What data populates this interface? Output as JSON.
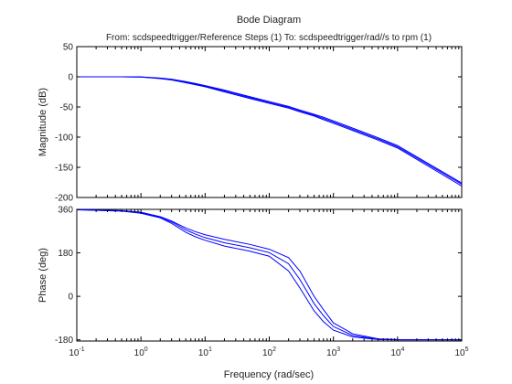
{
  "chart_data": {
    "type": "line",
    "title": "Bode Diagram",
    "subtitle": "From: scdspeedtrigger/Reference Steps (1)  To: scdspeedtrigger/rad//s to rpm (1)",
    "xlabel": "Frequency  (rad/sec)",
    "xscale": "log",
    "xlim": [
      0.1,
      100000
    ],
    "x_tick_labels": [
      "10",
      "10",
      "10",
      "10",
      "10",
      "10",
      "10"
    ],
    "x_tick_exponents": [
      "-1",
      "0",
      "1",
      "2",
      "3",
      "4",
      "5"
    ],
    "grid": false,
    "colors": {
      "line": "#0000ff",
      "axes": "#000000",
      "background": "#ffffff"
    },
    "x": [
      0.1,
      0.5,
      1,
      2,
      3,
      5,
      7,
      10,
      20,
      50,
      100,
      200,
      300,
      500,
      700,
      1000,
      2000,
      5000,
      10000,
      100000
    ],
    "panels": [
      {
        "ylabel": "Magnitude (dB)",
        "ylim": [
          -200,
          50
        ],
        "yticks": [
          -200,
          -150,
          -100,
          -50,
          0,
          50
        ],
        "y_tick_labels": [
          "-200",
          "-150",
          "-100",
          "-50",
          "0",
          "50"
        ],
        "series": [
          {
            "values": [
              0,
              0,
              -0.2,
              -2,
              -4,
              -8,
              -11,
              -14.5,
              -22,
              -33,
              -41,
              -49,
              -55,
              -62,
              -67,
              -73,
              -85,
              -101,
              -114,
              -176
            ]
          },
          {
            "values": [
              0,
              0,
              -0.3,
              -2.5,
              -4.6,
              -8.8,
              -12,
              -15.5,
              -23.5,
              -34.5,
              -42.5,
              -50.5,
              -56.5,
              -63.5,
              -69,
              -75,
              -87,
              -103,
              -116,
              -178
            ]
          },
          {
            "values": [
              0,
              0,
              -0.4,
              -3,
              -5.4,
              -9.8,
              -13,
              -16.5,
              -25,
              -36,
              -44,
              -52,
              -58,
              -65,
              -71,
              -77,
              -89,
              -105,
              -118,
              -181
            ]
          }
        ]
      },
      {
        "ylabel": "Phase (deg)",
        "ylim": [
          -185,
          360
        ],
        "yticks": [
          -180,
          0,
          180,
          360
        ],
        "y_tick_labels": [
          "-180",
          "0",
          "180",
          "360"
        ],
        "series": [
          {
            "values": [
              359,
              355,
              348,
              330,
              312,
              283,
              268,
              255,
              236,
              215,
              195,
              160,
              105,
              0,
              -55,
              -110,
              -155,
              -176,
              -179,
              -180
            ]
          },
          {
            "values": [
              359,
              354,
              346,
              328,
              308,
              275,
              258,
              243,
              222,
              201,
              181,
              135,
              70,
              -30,
              -80,
              -125,
              -162,
              -178,
              -180,
              -180
            ]
          },
          {
            "values": [
              358,
              353,
              344,
              325,
              302,
              265,
              247,
              232,
              208,
              187,
              166,
              105,
              35,
              -60,
              -105,
              -140,
              -168,
              -179,
              -180,
              -180
            ]
          }
        ]
      }
    ]
  }
}
